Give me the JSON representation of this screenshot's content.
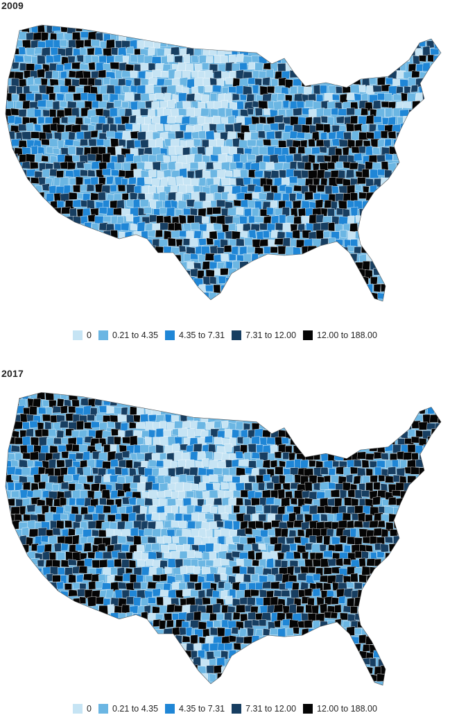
{
  "colors": {
    "bin0": "#c6e4f4",
    "bin1": "#6bb6e3",
    "bin2": "#1f86d6",
    "bin3": "#173e61",
    "bin4": "#050505",
    "border": "#ffffff"
  },
  "legend": [
    {
      "label": "0",
      "color": "#c6e4f4"
    },
    {
      "label": "0.21 to 4.35",
      "color": "#6bb6e3"
    },
    {
      "label": "4.35 to 7.31",
      "color": "#1f86d6"
    },
    {
      "label": "7.31 to 12.00",
      "color": "#173e61"
    },
    {
      "label": "12.00 to 188.00",
      "color": "#050505"
    }
  ],
  "maps": [
    {
      "title": "2009"
    },
    {
      "title": "2017"
    }
  ]
}
